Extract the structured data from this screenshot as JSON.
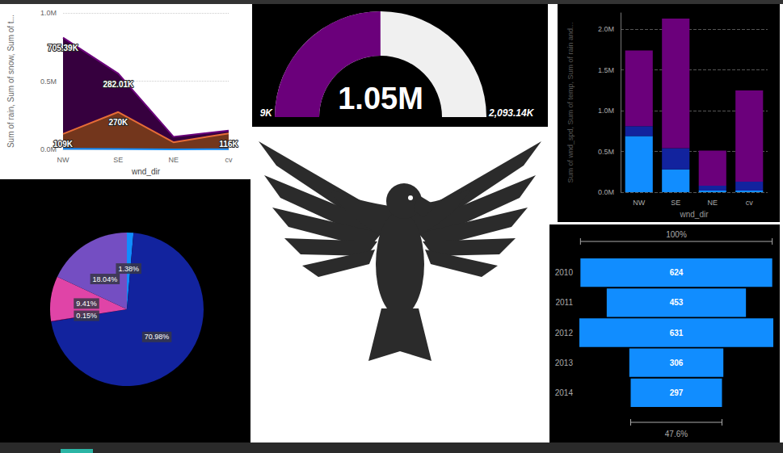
{
  "chart_data": [
    {
      "type": "area",
      "ylabel": "Sum of rain, Sum of snow, Sum of t...",
      "xlabel": "wnd_dir",
      "categories": [
        "NW",
        "SE",
        "NE",
        "cv"
      ],
      "series": [
        {
          "color": "#118dff",
          "values": [
            5000,
            4000,
            1000,
            2000
          ]
        },
        {
          "color": "#e66c37",
          "values": [
            109000,
            270000,
            52000,
            116000
          ],
          "value_labels": [
            "109K",
            "270K",
            null,
            "116K"
          ]
        },
        {
          "color": "#6b007b",
          "values": [
            705390,
            282010,
            40000,
            20000
          ],
          "value_labels": [
            "705.39K",
            "282.01K",
            null,
            null
          ]
        }
      ],
      "ylim": [
        0,
        1000000
      ],
      "yticks": [
        {
          "value": 0,
          "label": "0.0M"
        },
        {
          "value": 500000,
          "label": "0.5M"
        },
        {
          "value": 1000000,
          "label": "1.0M"
        }
      ],
      "grid": true,
      "stacked": true,
      "data_labels": true
    },
    {
      "type": "gauge",
      "ylim": [
        9000,
        2093140
      ],
      "yticks": [
        {
          "value": 9000,
          "label": "9K"
        },
        {
          "value": 2093140,
          "label": "2,093.14K"
        }
      ],
      "values": [
        1050000
      ],
      "value_labels": [
        "1.05M"
      ],
      "color": "#6b007b"
    },
    {
      "type": "bar",
      "ylabel": "Sum of wnd_spd, Sum of temp, Sum of rain and...",
      "xlabel": "wnd_dir",
      "categories": [
        "NW",
        "SE",
        "NE",
        "cv"
      ],
      "series": [
        {
          "color": "#118dff",
          "values": [
            690000,
            280000,
            20000,
            20000
          ]
        },
        {
          "color": "#12239e",
          "values": [
            120000,
            260000,
            60000,
            110000
          ]
        },
        {
          "color": "#6b007b",
          "values": [
            930000,
            1590000,
            430000,
            1120000
          ]
        }
      ],
      "ylim": [
        0,
        2200000
      ],
      "yticks": [
        {
          "value": 0,
          "label": "0.0M"
        },
        {
          "value": 500000,
          "label": "0.5M"
        },
        {
          "value": 1000000,
          "label": "1.0M"
        },
        {
          "value": 1500000,
          "label": "1.5M"
        },
        {
          "value": 2000000,
          "label": "2.0M"
        }
      ],
      "grid": true,
      "stacked": true
    },
    {
      "type": "pie",
      "values": [
        1.38,
        70.98,
        0.15,
        9.41,
        18.04
      ],
      "value_labels": [
        "1.38%",
        "70.98%",
        "0.15%",
        "9.41%",
        "18.04%"
      ],
      "colors": [
        "#118dff",
        "#12239e",
        "#6b007b",
        "#e044a7",
        "#744ec2"
      ],
      "data_labels": true
    },
    {
      "type": "funnel",
      "categories": [
        "2010",
        "2011",
        "2012",
        "2013",
        "2014"
      ],
      "values": [
        624,
        453,
        631,
        306,
        297
      ],
      "color": "#118dff",
      "data_labels": true,
      "annotations": [
        {
          "value": 100,
          "label": "100%"
        },
        {
          "value": 47.6,
          "label": "47.6%"
        }
      ]
    }
  ]
}
